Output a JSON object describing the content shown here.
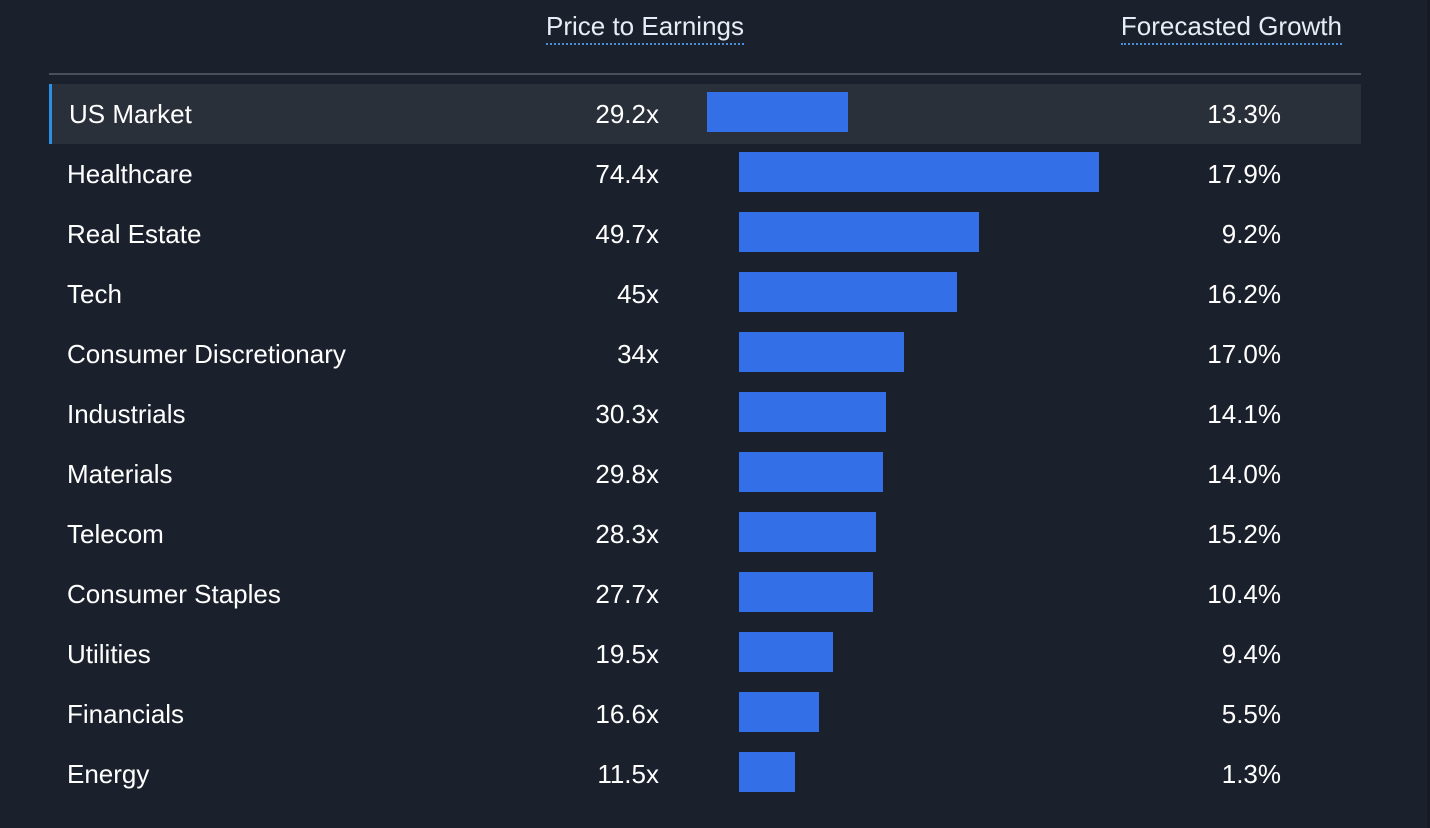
{
  "headers": {
    "pe": "Price to Earnings",
    "growth": "Forecasted Growth"
  },
  "colors": {
    "background": "#1b212c",
    "highlight_row": "#2a303a",
    "accent_border": "#2b8fe6",
    "bar": "#3370e8"
  },
  "chart_data": {
    "type": "bar",
    "orientation": "horizontal",
    "title": "",
    "xlabel": "Price to Earnings",
    "ylabel": "",
    "xlim": [
      0,
      74.4
    ],
    "grid": false,
    "categories": [
      "US Market",
      "Healthcare",
      "Real Estate",
      "Tech",
      "Consumer Discretionary",
      "Industrials",
      "Materials",
      "Telecom",
      "Consumer Staples",
      "Utilities",
      "Financials",
      "Energy"
    ],
    "values": [
      29.2,
      74.4,
      49.7,
      45,
      34,
      30.3,
      29.8,
      28.3,
      27.7,
      19.5,
      16.6,
      11.5
    ],
    "series": [
      {
        "name": "Price to Earnings",
        "values": [
          29.2,
          74.4,
          49.7,
          45,
          34,
          30.3,
          29.8,
          28.3,
          27.7,
          19.5,
          16.6,
          11.5
        ]
      },
      {
        "name": "Forecasted Growth",
        "values": [
          13.3,
          17.9,
          9.2,
          16.2,
          17.0,
          14.1,
          14.0,
          15.2,
          10.4,
          9.4,
          5.5,
          1.3
        ]
      }
    ],
    "pe_labels": [
      "29.2x",
      "74.4x",
      "49.7x",
      "45x",
      "34x",
      "30.3x",
      "29.8x",
      "28.3x",
      "27.7x",
      "19.5x",
      "16.6x",
      "11.5x"
    ],
    "growth_labels": [
      "13.3%",
      "17.9%",
      "9.2%",
      "16.2%",
      "17.0%",
      "14.1%",
      "14.0%",
      "15.2%",
      "10.4%",
      "9.4%",
      "5.5%",
      "1.3%"
    ],
    "highlighted_category": "US Market"
  }
}
